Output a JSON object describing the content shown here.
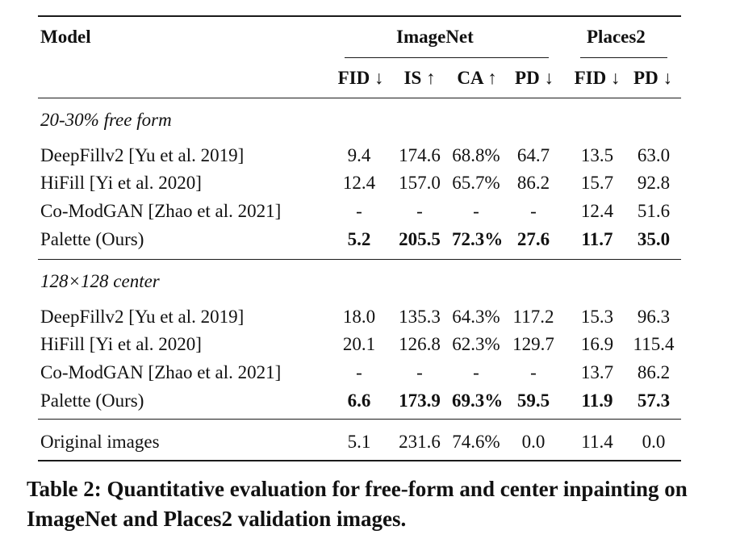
{
  "table": {
    "header": {
      "model": "Model",
      "group1": "ImageNet",
      "group2": "Places2",
      "cols": [
        "FID ↓",
        "IS ↑",
        "CA ↑",
        "PD ↓",
        "FID ↓",
        "PD ↓"
      ]
    },
    "sections": [
      {
        "title": "20-30% free form",
        "rows": [
          {
            "model": "DeepFillv2 [Yu et al. 2019]",
            "vals": [
              "9.4",
              "174.6",
              "68.8%",
              "64.7",
              "13.5",
              "63.0"
            ]
          },
          {
            "model": "HiFill [Yi et al. 2020]",
            "vals": [
              "12.4",
              "157.0",
              "65.7%",
              "86.2",
              "15.7",
              "92.8"
            ]
          },
          {
            "model": "Co-ModGAN [Zhao et al. 2021]",
            "vals": [
              "-",
              "-",
              "-",
              "-",
              "12.4",
              "51.6"
            ]
          },
          {
            "model": "Palette (Ours)",
            "vals": [
              "5.2",
              "205.5",
              "72.3%",
              "27.6",
              "11.7",
              "35.0"
            ]
          }
        ]
      },
      {
        "title": "128×128 center",
        "rows": [
          {
            "model": "DeepFillv2 [Yu et al. 2019]",
            "vals": [
              "18.0",
              "135.3",
              "64.3%",
              "117.2",
              "15.3",
              "96.3"
            ]
          },
          {
            "model": "HiFill [Yi et al. 2020]",
            "vals": [
              "20.1",
              "126.8",
              "62.3%",
              "129.7",
              "16.9",
              "115.4"
            ]
          },
          {
            "model": "Co-ModGAN [Zhao et al. 2021]",
            "vals": [
              "-",
              "-",
              "-",
              "-",
              "13.7",
              "86.2"
            ]
          },
          {
            "model": "Palette (Ours)",
            "vals": [
              "6.6",
              "173.9",
              "69.3%",
              "59.5",
              "11.9",
              "57.3"
            ]
          }
        ]
      }
    ],
    "original": {
      "model": "Original images",
      "vals": [
        "5.1",
        "231.6",
        "74.6%",
        "0.0",
        "11.4",
        "0.0"
      ]
    }
  },
  "caption": "Table 2: Quantitative evaluation for free-form and center inpainting on ImageNet and Places2 validation images."
}
